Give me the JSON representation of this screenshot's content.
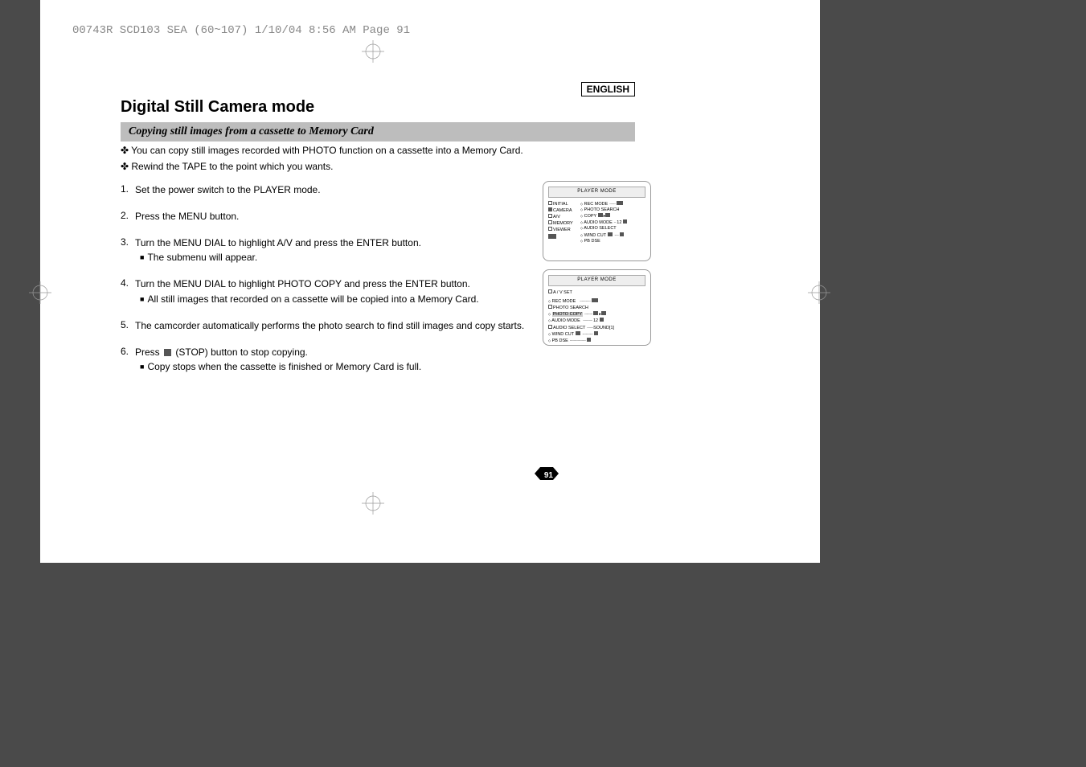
{
  "header": "00743R SCD103 SEA (60~107)  1/10/04 8:56 AM  Page 91",
  "lang_label": "ENGLISH",
  "title": "Digital Still Camera mode",
  "subtitle": "Copying still images from a cassette to Memory Card",
  "intro": [
    "You can copy still images recorded with PHOTO function on a cassette into a Memory Card.",
    "Rewind the TAPE to the point which you wants."
  ],
  "steps": [
    {
      "n": "1.",
      "t": "Set the power switch to the PLAYER mode.",
      "subs": []
    },
    {
      "n": "2.",
      "t": "Press the MENU button.",
      "subs": []
    },
    {
      "n": "3.",
      "t": "Turn the MENU DIAL to highlight A/V and press the ENTER button.",
      "subs": [
        "The submenu will appear."
      ]
    },
    {
      "n": "4.",
      "t": "Turn the MENU DIAL to highlight PHOTO COPY and press the ENTER button.",
      "subs": [
        "All still images that recorded on a cassette will be copied into a Memory Card."
      ]
    },
    {
      "n": "5.",
      "t": "The camcorder automatically performs the photo search to find still images and copy starts.",
      "subs": []
    },
    {
      "n": "6.",
      "t": "Press      (STOP) button to stop copying.",
      "subs": [
        "Copy stops when the cassette is finished or Memory Card is full."
      ],
      "stop": true
    }
  ],
  "lcd1": {
    "title": "PLAYER  MODE",
    "left": [
      "INITIAL",
      "CAMERA",
      "A/V",
      "MEMORY",
      "VIEWER"
    ],
    "right": [
      "REC MODE",
      "PHOTO SEARCH",
      "COPY",
      "AUDIO MODE",
      "AUDIO SELECT",
      "WIND CUT",
      "PB DSE"
    ],
    "right_suffix": [
      "",
      "",
      "",
      "12",
      "",
      "",
      ""
    ]
  },
  "lcd2": {
    "title": "PLAYER  MODE",
    "set": "A / V SET",
    "items": [
      "REC MODE",
      "PHOTO SEARCH",
      "PHOTO COPY",
      "AUDIO MODE",
      "AUDIO SELECT",
      "WIND CUT",
      "PB DSE"
    ],
    "suffix": [
      "",
      "",
      "",
      "12",
      "SOUND[1]",
      "",
      ""
    ],
    "highlight_index": 2
  },
  "page_number": "91"
}
